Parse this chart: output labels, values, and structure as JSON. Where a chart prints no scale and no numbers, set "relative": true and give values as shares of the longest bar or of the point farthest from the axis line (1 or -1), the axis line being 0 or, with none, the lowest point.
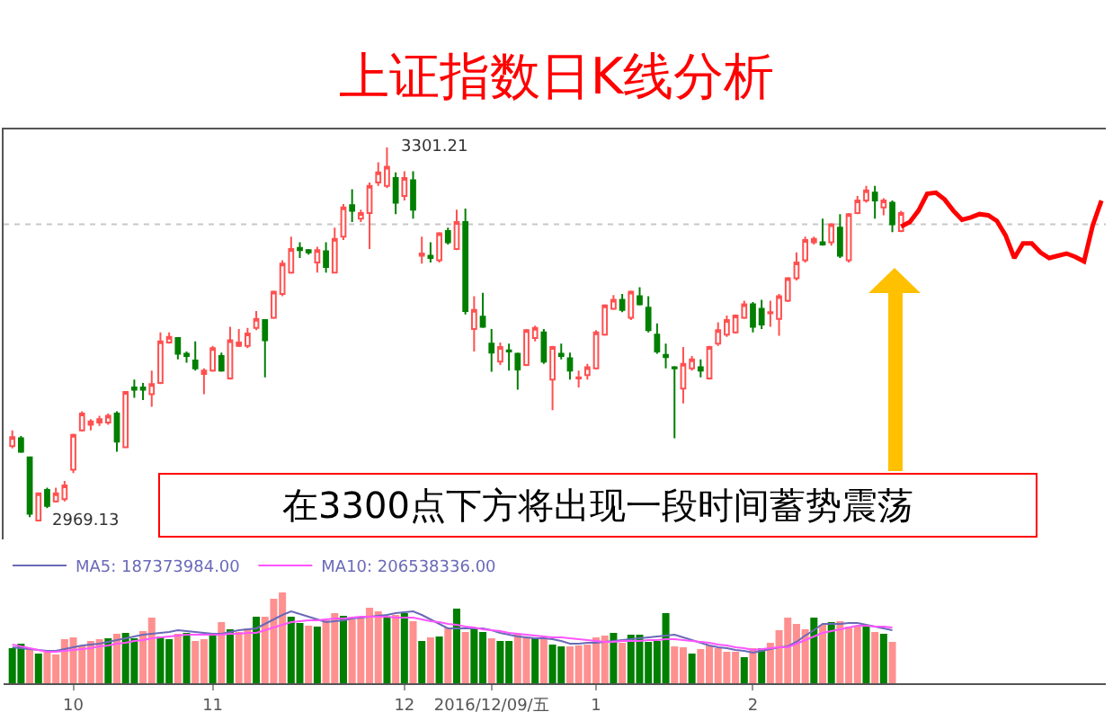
{
  "chart_data": [
    {
      "type": "candlestick",
      "title": "上证指数日K线分析",
      "categories": [
        null,
        null,
        null,
        null,
        null,
        null,
        null,
        null,
        null,
        null,
        null,
        null,
        null,
        null,
        null,
        null,
        null,
        null,
        null,
        null,
        null,
        null,
        null,
        null,
        null,
        null,
        null,
        null,
        null,
        null,
        null,
        null,
        null,
        null,
        null,
        null,
        null,
        null,
        null,
        null,
        null,
        null,
        null,
        null,
        null,
        null,
        null,
        null,
        null,
        null,
        null,
        null,
        null,
        null,
        null,
        null,
        null,
        null,
        null,
        null,
        null,
        null,
        null,
        null,
        null,
        null,
        null,
        null,
        null,
        null,
        null,
        null,
        null,
        null,
        null,
        null,
        null,
        null,
        null,
        null,
        null,
        null,
        null,
        null,
        null,
        null,
        null,
        null,
        null,
        null,
        null,
        null,
        null,
        null,
        null,
        null,
        null,
        null,
        null,
        null,
        null,
        null,
        null,
        null,
        null,
        null,
        null,
        null,
        null,
        null,
        null,
        null,
        null,
        null,
        null,
        null,
        null,
        null,
        null,
        null,
        null,
        null,
        null,
        null,
        null,
        null
      ],
      "ohlc": [
        [
          3036,
          3050,
          3034,
          3044
        ],
        [
          3043,
          3045,
          3030,
          3031
        ],
        [
          3026,
          3026,
          2973,
          2976
        ],
        [
          2970,
          2994,
          2969.13,
          2994
        ],
        [
          2997,
          2999,
          2981,
          2983
        ],
        [
          2987,
          2999,
          2986,
          2994
        ],
        [
          2989,
          3005,
          2987,
          3001
        ],
        [
          3015,
          3047,
          3012,
          3046
        ],
        [
          3050,
          3067,
          3049,
          3065
        ],
        [
          3055,
          3060,
          3050,
          3058
        ],
        [
          3057,
          3063,
          3054,
          3060
        ],
        [
          3057,
          3065,
          3055,
          3063
        ],
        [
          3065,
          3067,
          3031,
          3040
        ],
        [
          3035,
          3084,
          3035,
          3084
        ],
        [
          3088,
          3095,
          3079,
          3086
        ],
        [
          3088,
          3092,
          3077,
          3086
        ],
        [
          3082,
          3103,
          3071,
          3091
        ],
        [
          3092,
          3137,
          3091,
          3129
        ],
        [
          3128,
          3137,
          3127,
          3133
        ],
        [
          3132,
          3132,
          3113,
          3118
        ],
        [
          3118,
          3120,
          3110,
          3116
        ],
        [
          3112,
          3129,
          3103,
          3105
        ],
        [
          3100,
          3105,
          3082,
          3103
        ],
        [
          3103,
          3125,
          3102,
          3123
        ],
        [
          3116,
          3119,
          3102,
          3103
        ],
        [
          3096,
          3142,
          3095,
          3130
        ],
        [
          3125,
          3140,
          3124,
          3128
        ],
        [
          3125,
          3141,
          3123,
          3136
        ],
        [
          3141,
          3156,
          3139,
          3149
        ],
        [
          3148,
          3148,
          3097,
          3130
        ],
        [
          3150,
          3174,
          3149,
          3173
        ],
        [
          3171,
          3201,
          3169,
          3198
        ],
        [
          3190,
          3222,
          3189,
          3211
        ],
        [
          3212,
          3217,
          3203,
          3210
        ],
        [
          3210,
          3211,
          3206,
          3208
        ],
        [
          3199,
          3213,
          3190,
          3210
        ],
        [
          3209,
          3217,
          3190,
          3195
        ],
        [
          3190,
          3230,
          3190,
          3220
        ],
        [
          3222,
          3251,
          3219,
          3248
        ],
        [
          3250,
          3264,
          3235,
          3245
        ],
        [
          3238,
          3246,
          3235,
          3243
        ],
        [
          3243,
          3270,
          3211,
          3267
        ],
        [
          3270,
          3288,
          3267,
          3279
        ],
        [
          3267,
          3301.21,
          3265,
          3284
        ],
        [
          3274,
          3279,
          3242,
          3252
        ],
        [
          3258,
          3280,
          3254,
          3274
        ],
        [
          3272,
          3280,
          3238,
          3246
        ],
        [
          3205,
          3222,
          3198,
          3207
        ],
        [
          3205,
          3217,
          3199,
          3203
        ],
        [
          3201,
          3226,
          3199,
          3225
        ],
        [
          3227,
          3230,
          3215,
          3217
        ],
        [
          3211,
          3246,
          3210,
          3235
        ],
        [
          3235,
          3247,
          3153,
          3156
        ],
        [
          3140,
          3169,
          3120,
          3157
        ],
        [
          3151,
          3172,
          3141,
          3142
        ],
        [
          3127,
          3140,
          3102,
          3119
        ],
        [
          3111,
          3128,
          3108,
          3124
        ],
        [
          3121,
          3127,
          3103,
          3120
        ],
        [
          3118,
          3119,
          3086,
          3104
        ],
        [
          3108,
          3140,
          3107,
          3139
        ],
        [
          3132,
          3143,
          3129,
          3141
        ],
        [
          3137,
          3140,
          3109,
          3111
        ],
        [
          3095,
          3125,
          3068,
          3124
        ],
        [
          3118,
          3127,
          3113,
          3116
        ],
        [
          3114,
          3119,
          3095,
          3103
        ],
        [
          3096,
          3103,
          3088,
          3097
        ],
        [
          3099,
          3109,
          3095,
          3106
        ],
        [
          3105,
          3139,
          3104,
          3137
        ],
        [
          3135,
          3162,
          3134,
          3161
        ],
        [
          3158,
          3170,
          3157,
          3166
        ],
        [
          3166,
          3171,
          3155,
          3157
        ],
        [
          3150,
          3174,
          3148,
          3173
        ],
        [
          3169,
          3177,
          3161,
          3162
        ],
        [
          3159,
          3169,
          3137,
          3139
        ],
        [
          3135,
          3145,
          3118,
          3120
        ],
        [
          3117,
          3127,
          3105,
          3115
        ],
        [
          3106,
          3107,
          3043,
          3105
        ],
        [
          3087,
          3124,
          3074,
          3109
        ],
        [
          3105,
          3116,
          3103,
          3113
        ],
        [
          3106,
          3113,
          3097,
          3103
        ],
        [
          3096,
          3125,
          3095,
          3124
        ],
        [
          3127,
          3146,
          3125,
          3139
        ],
        [
          3135,
          3152,
          3133,
          3148
        ],
        [
          3137,
          3153,
          3136,
          3152
        ],
        [
          3150,
          3165,
          3149,
          3162
        ],
        [
          3162,
          3164,
          3137,
          3142
        ],
        [
          3158,
          3166,
          3140,
          3144
        ],
        [
          3154,
          3165,
          3142,
          3155
        ],
        [
          3149,
          3171,
          3134,
          3169
        ],
        [
          3165,
          3186,
          3164,
          3185
        ],
        [
          3185,
          3208,
          3183,
          3199
        ],
        [
          3201,
          3222,
          3199,
          3219
        ],
        [
          3217,
          3222,
          3215,
          3220
        ],
        [
          3217,
          3238,
          3214,
          3215
        ],
        [
          3217,
          3234,
          3214,
          3233
        ],
        [
          3230,
          3242,
          3203,
          3205
        ],
        [
          3201,
          3243,
          3199,
          3242
        ],
        [
          3243,
          3258,
          3242,
          3254
        ],
        [
          3254,
          3267,
          3252,
          3263
        ],
        [
          3261,
          3267,
          3238,
          3254
        ],
        [
          3248,
          3256,
          3241,
          3254
        ],
        [
          3252,
          3254,
          3226,
          3233
        ],
        [
          3227,
          3245,
          3226,
          3243
        ],
        null,
        null,
        null,
        null,
        null,
        null,
        null,
        null,
        null,
        null,
        null,
        null,
        null,
        null,
        null,
        null,
        null,
        null,
        null,
        null,
        null,
        null,
        null
      ],
      "colors": [
        "#ff5050",
        "#007f00",
        "#007f00",
        "#ff5050",
        "#007f00",
        "#ff5050",
        "#ff5050",
        "#ff5050",
        "#ff5050",
        "#ff5050",
        "#ff5050",
        "#ff5050",
        "#007f00",
        "#ff5050",
        "#007f00",
        "#007f00",
        "#ff5050",
        "#ff5050",
        "#ff5050",
        "#007f00",
        "#007f00",
        "#007f00",
        "#ff5050",
        "#ff5050",
        "#007f00",
        "#ff5050",
        "#ff5050",
        "#ff5050",
        "#ff5050",
        "#007f00",
        "#ff5050",
        "#ff5050",
        "#ff5050",
        "#007f00",
        "#007f00",
        "#ff5050",
        "#007f00",
        "#ff5050",
        "#ff5050",
        "#007f00",
        "#ff5050",
        "#ff5050",
        "#ff5050",
        "#ff5050",
        "#007f00",
        "#ff5050",
        "#007f00",
        "#ff5050",
        "#007f00",
        "#ff5050",
        "#007f00",
        "#ff5050",
        "#007f00",
        "#ff5050",
        "#007f00",
        "#007f00",
        "#ff5050",
        "#007f00",
        "#007f00",
        "#ff5050",
        "#ff5050",
        "#007f00",
        "#ff5050",
        "#007f00",
        "#007f00",
        "#ff5050",
        "#ff5050",
        "#ff5050",
        "#ff5050",
        "#ff5050",
        "#007f00",
        "#ff5050",
        "#007f00",
        "#007f00",
        "#007f00",
        "#007f00",
        "#007f00",
        "#ff5050",
        "#ff5050",
        "#007f00",
        "#ff5050",
        "#ff5050",
        "#ff5050",
        "#ff5050",
        "#ff5050",
        "#007f00",
        "#007f00",
        "#ff5050",
        "#ff5050",
        "#ff5050",
        "#ff5050",
        "#ff5050",
        "#ff5050",
        "#007f00",
        "#ff5050",
        "#007f00",
        "#ff5050",
        "#ff5050",
        "#ff5050",
        "#007f00",
        "#ff5050",
        "#007f00",
        "#ff5050",
        null,
        null,
        null,
        null,
        null,
        null,
        null,
        null,
        null,
        null,
        null,
        null,
        null,
        null,
        null,
        null,
        null,
        null,
        null,
        null,
        null,
        null,
        null
      ],
      "series": [
        {
          "type": "line",
          "color": "#ff0000",
          "values": [
            null,
            null,
            null,
            null,
            null,
            null,
            null,
            null,
            null,
            null,
            null,
            null,
            null,
            null,
            null,
            null,
            null,
            null,
            null,
            null,
            null,
            null,
            null,
            null,
            null,
            null,
            null,
            null,
            null,
            null,
            null,
            null,
            null,
            null,
            null,
            null,
            null,
            null,
            null,
            null,
            null,
            null,
            null,
            null,
            null,
            null,
            null,
            null,
            null,
            null,
            null,
            null,
            null,
            null,
            null,
            null,
            null,
            null,
            null,
            null,
            null,
            null,
            null,
            null,
            null,
            null,
            null,
            null,
            null,
            null,
            null,
            null,
            null,
            null,
            null,
            null,
            null,
            null,
            null,
            null,
            null,
            null,
            null,
            null,
            null,
            null,
            null,
            null,
            null,
            null,
            null,
            null,
            null,
            null,
            null,
            null,
            null,
            null,
            null,
            null,
            null,
            null,
            3231,
            3235,
            3245,
            3260,
            3261,
            3255,
            3245,
            3237,
            3239,
            3242,
            3241,
            3236,
            3223,
            3203,
            3216,
            3216,
            3208,
            3203,
            3205,
            3207,
            3204,
            3200,
            3232,
            3254
          ]
        }
      ],
      "ref_lines": [
        {
          "axis": "y",
          "value": 3233,
          "color": "#c8c8c8",
          "line_style": "dotted"
        }
      ],
      "annotations": [
        "在3300点下方将出现一段时间蓄势震荡",
        "3301.21",
        "2969.13"
      ]
    },
    {
      "type": "bar",
      "relative": true,
      "categories": [
        null,
        null,
        null,
        null,
        null,
        null,
        null,
        "10",
        null,
        null,
        null,
        null,
        null,
        null,
        null,
        null,
        null,
        null,
        null,
        null,
        null,
        null,
        null,
        "11",
        null,
        null,
        null,
        null,
        null,
        null,
        null,
        null,
        null,
        null,
        null,
        null,
        null,
        null,
        null,
        null,
        null,
        null,
        null,
        null,
        null,
        "12",
        null,
        null,
        null,
        null,
        null,
        null,
        null,
        null,
        null,
        "2016/12/09/五",
        null,
        null,
        null,
        null,
        null,
        null,
        null,
        null,
        null,
        null,
        null,
        "1",
        null,
        null,
        null,
        null,
        null,
        null,
        null,
        null,
        null,
        null,
        null,
        null,
        null,
        null,
        null,
        null,
        null,
        "2",
        null,
        null,
        null,
        null,
        null,
        null,
        null,
        null,
        null,
        null,
        null,
        null,
        null,
        null,
        null,
        null,
        null,
        null,
        null,
        null,
        null,
        null,
        null,
        null,
        null,
        null,
        null,
        null,
        null,
        null,
        null,
        null,
        null,
        null,
        null,
        null,
        null,
        null,
        null,
        null
      ],
      "series": [
        {
          "type": "bar",
          "values": [
            0.38,
            0.43,
            0.37,
            0.32,
            0.34,
            0.31,
            0.48,
            0.5,
            0.41,
            0.46,
            0.48,
            0.49,
            0.54,
            0.55,
            0.49,
            0.57,
            0.72,
            0.51,
            0.48,
            0.54,
            0.55,
            0.46,
            0.48,
            0.54,
            0.67,
            0.59,
            0.56,
            0.6,
            0.73,
            0.73,
            0.93,
            1,
            0.73,
            0.66,
            0.63,
            0.62,
            0.69,
            0.77,
            0.74,
            0.7,
            0.73,
            0.83,
            0.79,
            0.73,
            0.75,
            0.77,
            0.68,
            0.46,
            0.5,
            0.51,
            0.61,
            0.82,
            0.56,
            0.6,
            0.56,
            0.49,
            0.46,
            0.46,
            0.54,
            0.5,
            0.5,
            0.51,
            0.42,
            0.4,
            0.4,
            0.41,
            0.42,
            0.5,
            0.52,
            0.55,
            0.44,
            0.53,
            0.53,
            0.45,
            0.46,
            0.77,
            0.4,
            0.39,
            0.32,
            0.37,
            0.41,
            0.38,
            0.34,
            0.34,
            0.28,
            0.38,
            0.38,
            0.44,
            0.58,
            0.72,
            0.65,
            0.59,
            0.72,
            0.64,
            0.67,
            0.68,
            0.62,
            0.62,
            0.62,
            0.56,
            0.54,
            0.45,
            null,
            null,
            null,
            null,
            null,
            null,
            null,
            null,
            null,
            null,
            null,
            null,
            null,
            null,
            null,
            null,
            null,
            null,
            null,
            null,
            null,
            null,
            null,
            null
          ],
          "colors": [
            "#007f00",
            "#007f00",
            "#ff9090",
            "#007f00",
            "#ff9090",
            "#ff9090",
            "#ff9090",
            "#ff9090",
            "#ff9090",
            "#ff9090",
            "#ff9090",
            "#007f00",
            "#ff9090",
            "#007f00",
            "#007f00",
            "#ff9090",
            "#ff9090",
            "#007f00",
            "#007f00",
            "#ff9090",
            "#007f00",
            "#ff9090",
            "#ff9090",
            "#007f00",
            "#ff9090",
            "#007f00",
            "#ff9090",
            "#ff9090",
            "#007f00",
            "#ff9090",
            "#ff9090",
            "#ff9090",
            "#007f00",
            "#007f00",
            "#ff9090",
            "#007f00",
            "#ff9090",
            "#ff9090",
            "#007f00",
            "#ff9090",
            "#ff9090",
            "#ff9090",
            "#ff9090",
            "#007f00",
            "#ff9090",
            "#007f00",
            "#ff9090",
            "#007f00",
            "#ff9090",
            "#007f00",
            "#ff9090",
            "#007f00",
            "#ff9090",
            "#007f00",
            "#007f00",
            "#ff9090",
            "#007f00",
            "#007f00",
            "#ff9090",
            "#ff9090",
            "#007f00",
            "#ff9090",
            "#007f00",
            "#007f00",
            "#ff9090",
            "#ff9090",
            "#ff9090",
            "#ff9090",
            "#ff9090",
            "#007f00",
            "#ff9090",
            "#007f00",
            "#007f00",
            "#007f00",
            "#007f00",
            "#007f00",
            "#ff9090",
            "#ff9090",
            "#007f00",
            "#ff9090",
            "#ff9090",
            "#ff9090",
            "#ff9090",
            "#ff9090",
            "#007f00",
            "#ff9090",
            "#007f00",
            "#ff9090",
            "#ff9090",
            "#ff9090",
            "#ff9090",
            "#ff9090",
            "#007f00",
            "#ff9090",
            "#007f00",
            "#ff9090",
            "#ff9090",
            "#ff9090",
            "#007f00",
            "#ff9090",
            "#007f00",
            "#ff9090",
            null,
            null,
            null,
            null,
            null,
            null,
            null,
            null,
            null,
            null,
            null,
            null,
            null,
            null,
            null,
            null,
            null,
            null,
            null,
            null,
            null,
            null,
            null,
            null
          ]
        },
        {
          "type": "line",
          "name": "MA5: 187373984.00",
          "color": "#6a6ab8",
          "values": [
            0.4,
            0.39,
            0.38,
            0.37,
            0.36,
            0.36,
            0.38,
            0.4,
            0.42,
            0.43,
            0.44,
            0.46,
            0.48,
            0.5,
            0.52,
            0.54,
            0.55,
            0.56,
            0.57,
            0.59,
            0.58,
            0.57,
            0.56,
            0.55,
            0.55,
            0.57,
            0.59,
            0.6,
            0.61,
            0.66,
            0.71,
            0.76,
            0.8,
            0.77,
            0.74,
            0.71,
            0.68,
            0.69,
            0.7,
            0.72,
            0.73,
            0.74,
            0.75,
            0.76,
            0.78,
            0.79,
            0.8,
            0.76,
            0.71,
            0.66,
            0.61,
            0.61,
            0.61,
            0.61,
            0.61,
            0.59,
            0.56,
            0.54,
            0.52,
            0.51,
            0.5,
            0.5,
            0.49,
            0.47,
            0.44,
            0.44,
            0.45,
            0.45,
            0.46,
            0.47,
            0.48,
            0.49,
            0.5,
            0.51,
            0.52,
            0.53,
            0.54,
            0.51,
            0.48,
            0.45,
            0.42,
            0.4,
            0.39,
            0.37,
            0.36,
            0.34,
            0.36,
            0.38,
            0.4,
            0.41,
            0.46,
            0.53,
            0.59,
            0.66,
            0.66,
            0.66,
            0.67,
            0.67,
            0.65,
            0.63,
            0.61,
            0.59,
            null,
            null,
            null,
            null,
            null,
            null,
            null,
            null,
            null,
            null,
            null,
            null,
            null,
            null,
            null,
            null,
            null,
            null,
            null,
            null,
            null,
            null,
            null,
            null
          ]
        },
        {
          "type": "line",
          "name": "MA10: 206538336.00",
          "color": "#ff55ff",
          "values": [
            0.43,
            0.41,
            0.39,
            0.37,
            0.35,
            0.35,
            0.36,
            0.37,
            0.38,
            0.39,
            0.41,
            0.42,
            0.44,
            0.45,
            0.47,
            0.48,
            0.5,
            0.51,
            0.52,
            0.53,
            0.54,
            0.54,
            0.54,
            0.54,
            0.54,
            0.55,
            0.55,
            0.56,
            0.56,
            0.59,
            0.62,
            0.65,
            0.68,
            0.69,
            0.7,
            0.7,
            0.71,
            0.72,
            0.72,
            0.73,
            0.74,
            0.74,
            0.74,
            0.74,
            0.73,
            0.73,
            0.73,
            0.71,
            0.69,
            0.68,
            0.66,
            0.65,
            0.63,
            0.62,
            0.6,
            0.59,
            0.58,
            0.56,
            0.55,
            0.54,
            0.53,
            0.52,
            0.51,
            0.51,
            0.5,
            0.49,
            0.48,
            0.47,
            0.46,
            0.46,
            0.47,
            0.47,
            0.47,
            0.48,
            0.48,
            0.49,
            0.49,
            0.48,
            0.47,
            0.46,
            0.45,
            0.43,
            0.42,
            0.4,
            0.39,
            0.37,
            0.38,
            0.39,
            0.4,
            0.4,
            0.44,
            0.48,
            0.52,
            0.56,
            0.58,
            0.6,
            0.62,
            0.64,
            0.64,
            0.63,
            0.63,
            0.62,
            null,
            null,
            null,
            null,
            null,
            null,
            null,
            null,
            null,
            null,
            null,
            null,
            null,
            null,
            null,
            null,
            null,
            null,
            null,
            null,
            null,
            null,
            null,
            null
          ]
        }
      ],
      "legend": "top left"
    }
  ]
}
